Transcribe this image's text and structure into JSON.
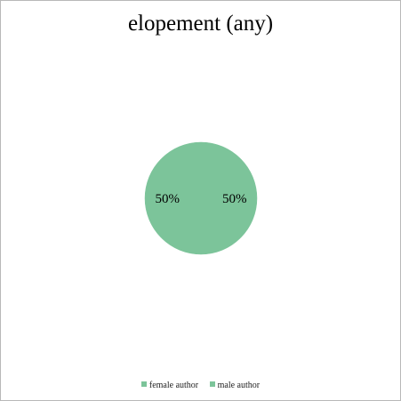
{
  "chart_data": {
    "type": "pie",
    "title": "elopement (any)",
    "categories": [
      "female author",
      "male author"
    ],
    "values": [
      50,
      50
    ],
    "data_labels": [
      "50%",
      "50%"
    ],
    "colors": [
      "#7cc49a",
      "#7cc49a"
    ],
    "legend_position": "bottom"
  }
}
